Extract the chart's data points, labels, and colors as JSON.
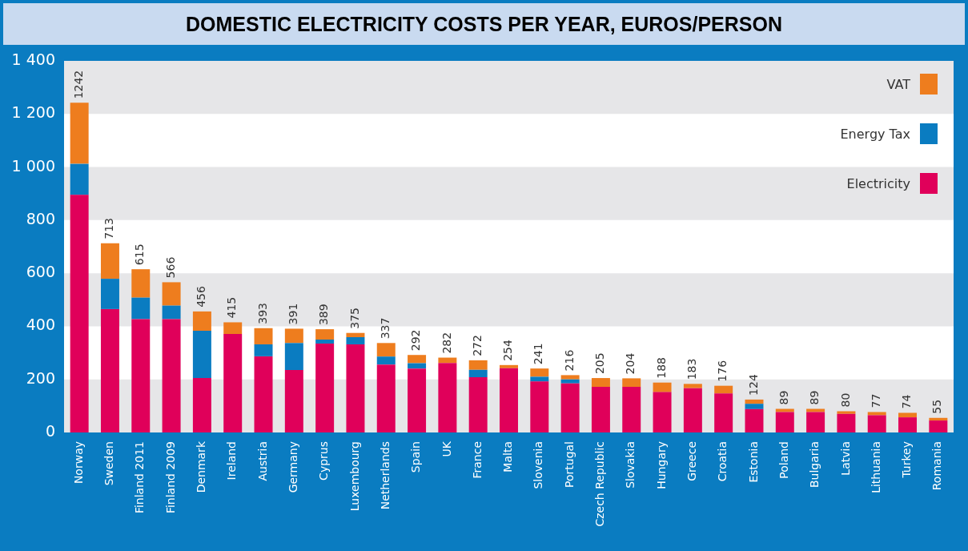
{
  "chart_data": {
    "type": "bar",
    "title": "DOMESTIC ELECTRICITY COSTS PER YEAR, EUROS/PERSON",
    "categories": [
      "Norway",
      "Sweden",
      "Finland 2011",
      "Finland 2009",
      "Denmark",
      "Ireland",
      "Austria",
      "Germany",
      "Cyprus",
      "Luxembourg",
      "Netherlands",
      "Spain",
      "UK",
      "France",
      "Malta",
      "Slovenia",
      "Portugal",
      "Czech Republic",
      "Slovakia",
      "Hungary",
      "Greece",
      "Croatia",
      "Estonia",
      "Poland",
      "Bulgaria",
      "Latvia",
      "Lithuania",
      "Turkey",
      "Romania"
    ],
    "stacked": true,
    "series": [
      {
        "name": "Electricity",
        "color": "#e0005a",
        "values": [
          895,
          465,
          427,
          427,
          205,
          371,
          287,
          235,
          335,
          332,
          256,
          241,
          262,
          208,
          242,
          192,
          185,
          172,
          172,
          152,
          167,
          147,
          88,
          77,
          77,
          70,
          65,
          57,
          45
        ]
      },
      {
        "name": "Energy Tax",
        "color": "#0a7cc1",
        "values": [
          117,
          114,
          81,
          51,
          178,
          0,
          45,
          102,
          15,
          27,
          30,
          20,
          0,
          28,
          0,
          18,
          15,
          0,
          0,
          0,
          0,
          0,
          20,
          0,
          0,
          0,
          0,
          0,
          0
        ]
      },
      {
        "name": "VAT",
        "color": "#ee7d1e",
        "values": [
          230,
          134,
          107,
          88,
          73,
          44,
          61,
          54,
          39,
          16,
          51,
          31,
          20,
          36,
          12,
          31,
          16,
          33,
          32,
          36,
          16,
          29,
          16,
          12,
          12,
          10,
          12,
          17,
          10
        ]
      }
    ],
    "totals": [
      "1242",
      "713",
      "615",
      "566",
      "456",
      "415",
      "393",
      "391",
      "389",
      "375",
      "337",
      "292",
      "282",
      "272",
      "254",
      "241",
      "216",
      "205",
      "204",
      "188",
      "183",
      "176",
      "124",
      "89",
      "89",
      "80",
      "77",
      "74",
      "55"
    ],
    "ylim": [
      0,
      1400
    ],
    "yticks": [
      0,
      200,
      400,
      600,
      800,
      {
        "value": 1000,
        "label": "1 000"
      },
      {
        "value": 1200,
        "label": "1 200"
      },
      {
        "value": 1400,
        "label": "1 400"
      }
    ],
    "bands": [
      {
        "axis": "y",
        "from": 0,
        "to": 200,
        "color": "#e6e6e8"
      },
      {
        "axis": "y",
        "from": 400,
        "to": 600,
        "color": "#e6e6e8"
      },
      {
        "axis": "y",
        "from": 800,
        "to": 1000,
        "color": "#e6e6e8"
      },
      {
        "axis": "y",
        "from": 1200,
        "to": 1400,
        "color": "#e6e6e8"
      }
    ],
    "legend": "top right"
  }
}
